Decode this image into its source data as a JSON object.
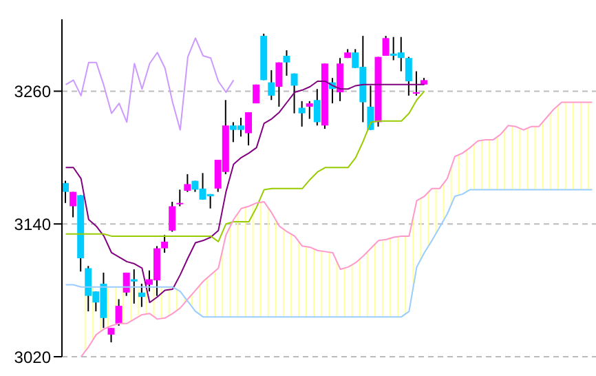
{
  "chart_data": {
    "type": "candlestick",
    "categories": [
      null,
      null,
      null,
      null,
      null,
      null,
      null,
      null,
      null,
      null,
      null,
      null,
      null,
      null,
      null,
      null,
      null,
      null,
      null,
      null,
      null,
      null,
      null,
      null,
      null,
      null,
      null,
      null,
      null,
      null,
      null,
      null,
      null,
      null,
      null,
      null,
      null,
      null,
      null,
      null,
      null,
      null,
      null,
      null,
      null,
      null,
      null,
      null,
      null,
      null,
      null,
      null,
      null,
      null,
      null,
      null,
      null,
      null,
      null,
      null,
      null,
      null,
      null,
      null,
      null,
      null,
      null,
      null,
      null,
      null
    ],
    "ohlc": [
      [
        3177,
        3179,
        3159,
        3169
      ],
      [
        3156,
        3169,
        3146,
        3169
      ],
      [
        3166,
        3166,
        3097,
        3109
      ],
      [
        3100,
        3102,
        3061,
        3075
      ],
      [
        3079,
        3079,
        3061,
        3069
      ],
      [
        3086,
        3096,
        3046,
        3055
      ],
      [
        3040,
        3046,
        3033,
        3046
      ],
      [
        3050,
        3072,
        3048,
        3066
      ],
      [
        3078,
        3096,
        3075,
        3096
      ],
      [
        3090,
        3099,
        3068,
        3088
      ],
      [
        3078,
        3086,
        3065,
        3074
      ],
      [
        3085,
        3098,
        3079,
        3090
      ],
      [
        3089,
        3120,
        3075,
        3118
      ],
      [
        3118,
        3130,
        3114,
        3124
      ],
      [
        3134,
        3160,
        3133,
        3156
      ],
      [
        3158,
        3171,
        3156,
        3159
      ],
      [
        3170,
        3185,
        3169,
        3176
      ],
      [
        3179,
        3179,
        3169,
        3171
      ],
      [
        3172,
        3186,
        3162,
        3162
      ],
      [
        3167,
        3167,
        3154,
        3165
      ],
      [
        3172,
        3198,
        3169,
        3198
      ],
      [
        3187,
        3252,
        3185,
        3229
      ],
      [
        3229,
        3232,
        3214,
        3225
      ],
      [
        3229,
        3236,
        3219,
        3225
      ],
      [
        3222,
        3241,
        3211,
        3241
      ],
      [
        3249,
        3266,
        3249,
        3266
      ],
      [
        3310,
        3312,
        3270,
        3270
      ],
      [
        3268,
        3279,
        3252,
        3256
      ],
      [
        3264,
        3286,
        3246,
        3286
      ],
      [
        3292,
        3297,
        3274,
        3286
      ],
      [
        3276,
        3276,
        3240,
        3265
      ],
      [
        3245,
        3251,
        3228,
        3240
      ],
      [
        3246,
        3251,
        3235,
        3249
      ],
      [
        3252,
        3262,
        3229,
        3232
      ],
      [
        3229,
        3285,
        3226,
        3285
      ],
      [
        3268,
        3272,
        3249,
        3262
      ],
      [
        3259,
        3290,
        3251,
        3285
      ],
      [
        3290,
        3298,
        3290,
        3295
      ],
      [
        3295,
        3298,
        3281,
        3281
      ],
      [
        3282,
        3310,
        3232,
        3250
      ],
      [
        3246,
        3265,
        3225,
        3225
      ],
      [
        3232,
        3291,
        3228,
        3291
      ],
      [
        3292,
        3310,
        3292,
        3308
      ],
      [
        3294,
        3309,
        3288,
        3292
      ],
      [
        3295,
        3309,
        3278,
        3290
      ],
      [
        3290,
        3291,
        3256,
        3269
      ],
      [
        3258,
        3278,
        3256,
        3259
      ],
      [
        3266,
        3272,
        3266,
        3270
      ],
      null,
      null,
      null,
      null,
      null,
      null,
      null,
      null,
      null,
      null,
      null,
      null,
      null,
      null,
      null,
      null,
      null,
      null,
      null,
      null,
      null,
      null
    ],
    "colors": [
      "#00ccff",
      "#ff00ff",
      "#00ccff",
      "#00ccff",
      "#00ccff",
      "#00ccff",
      "#ff00ff",
      "#ff00ff",
      "#ff00ff",
      "#00ccff",
      "#00ccff",
      "#ff00ff",
      "#ff00ff",
      "#ff00ff",
      "#ff00ff",
      "#ff00ff",
      "#ff00ff",
      "#00ccff",
      "#00ccff",
      "#00ccff",
      "#ff00ff",
      "#ff00ff",
      "#00ccff",
      "#00ccff",
      "#ff00ff",
      "#ff00ff",
      "#00ccff",
      "#00ccff",
      "#ff00ff",
      "#00ccff",
      "#00ccff",
      "#00ccff",
      "#ff00ff",
      "#00ccff",
      "#ff00ff",
      "#00ccff",
      "#ff00ff",
      "#ff00ff",
      "#00ccff",
      "#00ccff",
      "#00ccff",
      "#ff00ff",
      "#ff00ff",
      "#00ccff",
      "#00ccff",
      "#00ccff",
      "#ff00ff",
      "#ff00ff",
      null,
      null,
      null,
      null,
      null,
      null,
      null,
      null,
      null,
      null,
      null,
      null,
      null,
      null,
      null,
      null,
      null,
      null,
      null,
      null,
      null,
      null
    ],
    "series": [
      {
        "type": "line",
        "color": "#800080",
        "values": [
          3191,
          3191,
          3181,
          3144,
          3138,
          3129,
          3114,
          3110,
          3106,
          3104,
          3100,
          3069,
          3074,
          3080,
          3081,
          3094,
          3109,
          3123,
          3125,
          3128,
          3134,
          3169,
          3194,
          3200,
          3204,
          3209,
          3231,
          3235,
          3241,
          3250,
          3259,
          3261,
          3264,
          3269,
          3269,
          3265,
          3262,
          3262,
          3265,
          3266,
          3266,
          3266,
          3266,
          3266,
          3266,
          3266,
          3266,
          3266,
          null,
          null,
          null,
          null,
          null,
          null,
          null,
          null,
          null,
          null,
          null,
          null,
          null,
          null,
          null,
          null,
          null,
          null,
          null,
          null,
          null,
          null
        ]
      },
      {
        "type": "line",
        "color": "#99cc00",
        "values": [
          3131,
          3131,
          3131,
          3131,
          3131,
          3131,
          3129,
          3129,
          3129,
          3129,
          3129,
          3129,
          3129,
          3129,
          3129,
          3129,
          3129,
          3129,
          3129,
          3129,
          3124,
          3140,
          3142,
          3142,
          3142,
          3155,
          3171,
          3172,
          3172,
          3172,
          3172,
          3172,
          3180,
          3187,
          3191,
          3191,
          3191,
          3191,
          3200,
          3215,
          3232,
          3233,
          3233,
          3233,
          3233,
          3240,
          3252,
          3260,
          null,
          null,
          null,
          null,
          null,
          null,
          null,
          null,
          null,
          null,
          null,
          null,
          null,
          null,
          null,
          null,
          null,
          null,
          null,
          null,
          null,
          null
        ]
      },
      {
        "type": "line",
        "color": "#cc99ff",
        "values": [
          3266,
          3270,
          3256,
          3286,
          3286,
          3265,
          3240,
          3249,
          3232,
          3285,
          3262,
          3285,
          3295,
          3281,
          3250,
          3225,
          3291,
          3308,
          3292,
          3290,
          3269,
          3259,
          3270,
          null,
          null,
          null,
          null,
          null,
          null,
          null,
          null,
          null,
          null,
          null,
          null,
          null,
          null,
          null,
          null,
          null,
          null,
          null,
          null,
          null,
          null,
          null,
          null,
          null,
          null,
          null,
          null,
          null,
          null,
          null,
          null,
          null,
          null,
          null,
          null,
          null,
          null,
          null,
          null,
          null,
          null,
          null,
          null,
          null,
          null,
          null
        ]
      },
      {
        "type": "line",
        "color": "#ff99cc",
        "values": [
          null,
          null,
          3020,
          3029,
          3040,
          3045,
          3048,
          3050,
          3050,
          3054,
          3058,
          3059,
          3054,
          3055,
          3059,
          3064,
          3072,
          3080,
          3088,
          3094,
          3100,
          3130,
          3144,
          3154,
          3156,
          3159,
          3160,
          3150,
          3138,
          3133,
          3129,
          3120,
          3119,
          3116,
          3115,
          3114,
          3099,
          3101,
          3105,
          3111,
          3118,
          3125,
          3126,
          3128,
          3129,
          3129,
          3161,
          3165,
          3172,
          3172,
          3181,
          3201,
          3204,
          3209,
          3215,
          3216,
          3216,
          3221,
          3229,
          3228,
          3225,
          3228,
          3228,
          3236,
          3244,
          3250,
          3250,
          3250,
          3250,
          3250
        ],
        "lower": [
          null,
          null,
          3083,
          3083,
          3083,
          3083,
          3083,
          3083,
          3083,
          3083,
          3083,
          3083,
          3083,
          3083,
          3083,
          3079,
          3070,
          3061,
          3056,
          3056,
          3056,
          3056,
          3056,
          3056,
          3056,
          3056,
          3056,
          3056,
          3056,
          3056,
          3056,
          3056,
          3056,
          3056,
          3056,
          3056,
          3056,
          3056,
          3056,
          3056,
          3056,
          3056,
          3056,
          3056,
          3056,
          3061,
          3101,
          3114,
          3125,
          3137,
          3149,
          3165,
          3167,
          3171,
          3171,
          3171,
          3171,
          3171,
          3171,
          3171,
          3171,
          3171,
          3171,
          3171,
          3171,
          3171,
          3171,
          3171,
          3171,
          3171
        ],
        "upper": [
          null,
          null,
          3020,
          3029,
          3040,
          3045,
          3048,
          3050,
          3050,
          3054,
          3058,
          3059,
          3054,
          3055,
          3059,
          3064,
          3072,
          3080,
          3088,
          3094,
          3100,
          3130,
          3144,
          3154,
          3156,
          3159,
          3160,
          3150,
          3138,
          3133,
          3129,
          3120,
          3119,
          3116,
          3115,
          3114,
          3099,
          3101,
          3105,
          3111,
          3118,
          3125,
          3126,
          3128,
          3129,
          3129,
          3161,
          3165,
          3172,
          3172,
          3181,
          3201,
          3204,
          3209,
          3215,
          3216,
          3216,
          3221,
          3229,
          3228,
          3225,
          3228,
          3228,
          3236,
          3244,
          3250,
          3250,
          3250,
          3250,
          3250
        ]
      },
      {
        "type": "line",
        "color": "#99ccff",
        "values": [
          3085,
          3085,
          3083,
          3083,
          3083,
          3083,
          3083,
          3083,
          3083,
          3083,
          3083,
          3083,
          3083,
          3083,
          3083,
          3079,
          3070,
          3061,
          3056,
          3056,
          3056,
          3056,
          3056,
          3056,
          3056,
          3056,
          3056,
          3056,
          3056,
          3056,
          3056,
          3056,
          3056,
          3056,
          3056,
          3056,
          3056,
          3056,
          3056,
          3056,
          3056,
          3056,
          3056,
          3056,
          3056,
          3061,
          3101,
          3114,
          3125,
          3137,
          3149,
          3165,
          3167,
          3171,
          3171,
          3171,
          3171,
          3171,
          3171,
          3171,
          3171,
          3171,
          3171,
          3171,
          3171,
          3171,
          3171,
          3171,
          3171,
          3171
        ]
      }
    ],
    "ylim": [
      3020,
      3325
    ],
    "yticks": [
      3020,
      3140,
      3260
    ],
    "grid": "y",
    "tick_labels": "y"
  }
}
